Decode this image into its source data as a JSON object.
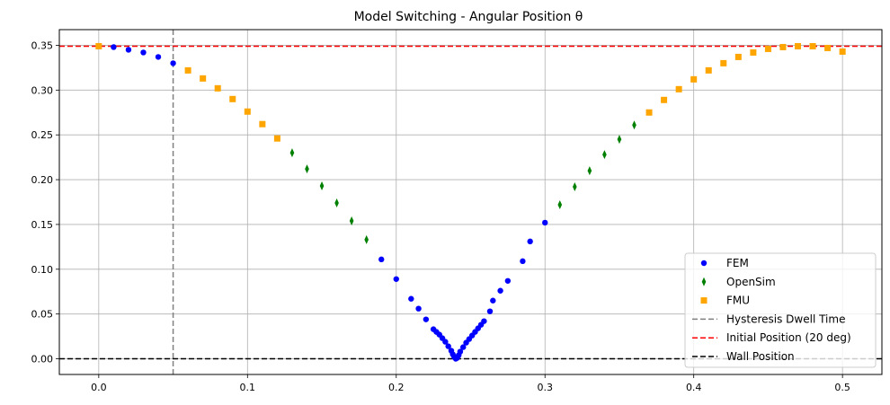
{
  "chart_data": {
    "type": "scatter",
    "title": "Model Switching - Angular Position θ",
    "xlim": [
      -0.0265,
      0.5265
    ],
    "ylim": [
      -0.0175,
      0.3675
    ],
    "grid": true,
    "legend_position": "lower-right",
    "x_ticks": [
      {
        "value": 0.0,
        "label": "0.0"
      },
      {
        "value": 0.1,
        "label": "0.1"
      },
      {
        "value": 0.2,
        "label": "0.2"
      },
      {
        "value": 0.3,
        "label": "0.3"
      },
      {
        "value": 0.4,
        "label": "0.4"
      },
      {
        "value": 0.5,
        "label": "0.5"
      }
    ],
    "y_ticks": [
      {
        "value": 0.0,
        "label": "0.00"
      },
      {
        "value": 0.05,
        "label": "0.05"
      },
      {
        "value": 0.1,
        "label": "0.10"
      },
      {
        "value": 0.15,
        "label": "0.15"
      },
      {
        "value": 0.2,
        "label": "0.20"
      },
      {
        "value": 0.25,
        "label": "0.25"
      },
      {
        "value": 0.3,
        "label": "0.30"
      },
      {
        "value": 0.35,
        "label": "0.35"
      }
    ],
    "series": [
      {
        "name": "FEM",
        "marker": "circle",
        "color": "#0000ff",
        "points": [
          [
            0.0,
            0.349
          ],
          [
            0.01,
            0.348
          ],
          [
            0.02,
            0.345
          ],
          [
            0.03,
            0.342
          ],
          [
            0.04,
            0.337
          ],
          [
            0.05,
            0.33
          ],
          [
            0.19,
            0.111
          ],
          [
            0.2,
            0.089
          ],
          [
            0.21,
            0.067
          ],
          [
            0.215,
            0.056
          ],
          [
            0.22,
            0.044
          ],
          [
            0.225,
            0.033
          ],
          [
            0.227,
            0.03
          ],
          [
            0.229,
            0.027
          ],
          [
            0.231,
            0.023
          ],
          [
            0.233,
            0.019
          ],
          [
            0.235,
            0.014
          ],
          [
            0.237,
            0.009
          ],
          [
            0.238,
            0.005
          ],
          [
            0.239,
            0.002
          ],
          [
            0.24,
            0.0
          ],
          [
            0.241,
            0.001
          ],
          [
            0.242,
            0.004
          ],
          [
            0.243,
            0.008
          ],
          [
            0.245,
            0.013
          ],
          [
            0.247,
            0.018
          ],
          [
            0.249,
            0.022
          ],
          [
            0.251,
            0.026
          ],
          [
            0.253,
            0.03
          ],
          [
            0.255,
            0.034
          ],
          [
            0.257,
            0.038
          ],
          [
            0.259,
            0.042
          ],
          [
            0.263,
            0.053
          ],
          [
            0.265,
            0.065
          ],
          [
            0.27,
            0.076
          ],
          [
            0.275,
            0.087
          ],
          [
            0.285,
            0.109
          ],
          [
            0.29,
            0.131
          ],
          [
            0.3,
            0.152
          ]
        ]
      },
      {
        "name": "OpenSim",
        "marker": "thin_diamond",
        "color": "#008000",
        "points": [
          [
            0.13,
            0.23
          ],
          [
            0.14,
            0.212
          ],
          [
            0.15,
            0.193
          ],
          [
            0.16,
            0.174
          ],
          [
            0.17,
            0.154
          ],
          [
            0.18,
            0.133
          ],
          [
            0.31,
            0.172
          ],
          [
            0.32,
            0.192
          ],
          [
            0.33,
            0.21
          ],
          [
            0.34,
            0.228
          ],
          [
            0.35,
            0.245
          ],
          [
            0.36,
            0.261
          ]
        ]
      },
      {
        "name": "FMU",
        "marker": "square",
        "color": "#ffa500",
        "points": [
          [
            0.0,
            0.349
          ],
          [
            0.06,
            0.322
          ],
          [
            0.07,
            0.313
          ],
          [
            0.08,
            0.302
          ],
          [
            0.09,
            0.29
          ],
          [
            0.1,
            0.276
          ],
          [
            0.11,
            0.262
          ],
          [
            0.12,
            0.246
          ],
          [
            0.37,
            0.275
          ],
          [
            0.38,
            0.289
          ],
          [
            0.39,
            0.301
          ],
          [
            0.4,
            0.312
          ],
          [
            0.41,
            0.322
          ],
          [
            0.42,
            0.33
          ],
          [
            0.43,
            0.337
          ],
          [
            0.44,
            0.342
          ],
          [
            0.45,
            0.346
          ],
          [
            0.46,
            0.348
          ],
          [
            0.47,
            0.349
          ],
          [
            0.48,
            0.349
          ],
          [
            0.49,
            0.347
          ],
          [
            0.5,
            0.343
          ]
        ]
      }
    ],
    "reference_lines": [
      {
        "name": "Hysteresis Dwell Time",
        "orientation": "vertical",
        "value": 0.05,
        "color": "#808080",
        "style": "dashed"
      },
      {
        "name": "Initial Position (20 deg)",
        "orientation": "horizontal",
        "value": 0.349,
        "color": "#ff0000",
        "style": "dashed"
      },
      {
        "name": "Wall Position",
        "orientation": "horizontal",
        "value": 0.0,
        "color": "#000000",
        "style": "dashed"
      }
    ]
  }
}
